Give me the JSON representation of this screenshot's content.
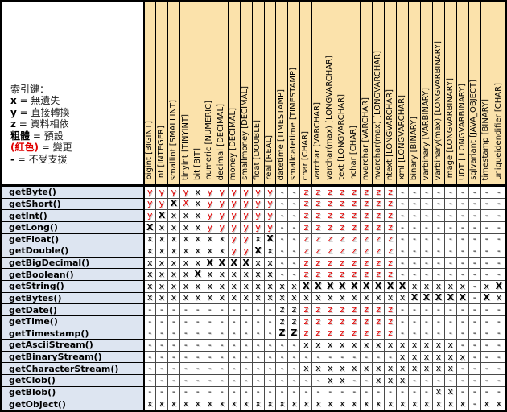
{
  "legend": {
    "title": "索引鍵：",
    "entries": [
      {
        "key": "x",
        "desc": "無遺失",
        "red": false
      },
      {
        "key": "y",
        "desc": "直接轉換",
        "red": false
      },
      {
        "key": "z",
        "desc": "資料相依",
        "red": false
      },
      {
        "key": "粗體",
        "desc": "預設",
        "red": false
      },
      {
        "key": "(紅色)",
        "desc": "變更",
        "red": true
      },
      {
        "key": "-",
        "desc": "不受支援",
        "red": false
      }
    ]
  },
  "colors": {
    "header_bg": "#FBE2AB",
    "row_label_bg": "#DDE5F1",
    "symbol_red": "#E00000",
    "border": "#000000"
  },
  "columns": [
    "bigint [BIGINT]",
    "int [INTEGER]",
    "smallint [SMALLINT]",
    "tinyint [TINYINT]",
    "bit [BIT]",
    "numeric [NUMERIC]",
    "decimal [DECIMAL]",
    "money [DECIMAL]",
    "smallmoney [DECIMAL]",
    "float [DOUBLE]",
    "real [REAL]",
    "datetime [TIMESTAMP]",
    "smalldatetime [TIMESTAMP]",
    "char [CHAR]",
    "varchar [VARCHAR]",
    "varchar(max) [LONGVARCHAR]",
    "text [LONGVARCHAR]",
    "nchar [CHAR]",
    "nvarchar [VARCHAR]",
    "nvarchar(max) [LONGVARCHAR]",
    "ntext [LONGVARCHAR]",
    "xml [LONGVARCHAR]",
    "binary [BINARY]",
    "varbinary [VARBINARY]",
    "varbinary(max) [LONGVARBINARY]",
    "image [LONGVARBINARY]",
    "UDT [ LONGVARBINARY]",
    "sqlvariant [JAVA_OBJECT]",
    "timestamp [BINARY]",
    "uniqueidendifier [CHAR]"
  ],
  "symbol_display": {
    "x": "x",
    "X": "X",
    "y": "y",
    "z": "z",
    "zk": "z",
    "Z": "Z",
    "R": "X",
    "-": "-"
  },
  "symbol_style": {
    "x": "",
    "X": "bold",
    "y": "red",
    "z": "red",
    "zk": "",
    "Z": "bold",
    "R": "red",
    "-": ""
  },
  "rows": [
    {
      "method": "getByte()",
      "cells": [
        "y",
        "y",
        "y",
        "y",
        "x",
        "y",
        "y",
        "y",
        "y",
        "y",
        "y",
        "-",
        "-",
        "z",
        "z",
        "z",
        "z",
        "z",
        "z",
        "z",
        "z",
        "-",
        "-",
        "-",
        "-",
        "-",
        "-",
        "-",
        "-",
        "-"
      ]
    },
    {
      "method": "getShort()",
      "cells": [
        "y",
        "y",
        "X",
        "R",
        "x",
        "y",
        "y",
        "y",
        "y",
        "y",
        "y",
        "-",
        "-",
        "z",
        "z",
        "z",
        "z",
        "z",
        "z",
        "z",
        "z",
        "-",
        "-",
        "-",
        "-",
        "-",
        "-",
        "-",
        "-",
        "-"
      ]
    },
    {
      "method": "getInt()",
      "cells": [
        "y",
        "X",
        "x",
        "x",
        "x",
        "y",
        "y",
        "y",
        "y",
        "y",
        "y",
        "-",
        "-",
        "z",
        "z",
        "z",
        "z",
        "z",
        "z",
        "z",
        "z",
        "-",
        "-",
        "-",
        "-",
        "-",
        "-",
        "-",
        "-",
        "-"
      ]
    },
    {
      "method": "getLong()",
      "cells": [
        "X",
        "x",
        "x",
        "x",
        "x",
        "y",
        "y",
        "y",
        "y",
        "y",
        "y",
        "-",
        "-",
        "z",
        "z",
        "z",
        "z",
        "z",
        "z",
        "z",
        "z",
        "-",
        "-",
        "-",
        "-",
        "-",
        "-",
        "-",
        "-",
        "-"
      ]
    },
    {
      "method": "getFloat()",
      "cells": [
        "x",
        "x",
        "x",
        "x",
        "x",
        "x",
        "x",
        "y",
        "y",
        "x",
        "X",
        "-",
        "-",
        "z",
        "z",
        "z",
        "z",
        "z",
        "z",
        "z",
        "z",
        "-",
        "-",
        "-",
        "-",
        "-",
        "-",
        "-",
        "-",
        "-"
      ]
    },
    {
      "method": "getDouble()",
      "cells": [
        "x",
        "x",
        "x",
        "x",
        "x",
        "x",
        "x",
        "y",
        "y",
        "X",
        "x",
        "-",
        "-",
        "z",
        "z",
        "z",
        "z",
        "z",
        "z",
        "z",
        "z",
        "-",
        "-",
        "-",
        "-",
        "-",
        "-",
        "-",
        "-",
        "-"
      ]
    },
    {
      "method": "getBigDecimal()",
      "cells": [
        "x",
        "x",
        "x",
        "x",
        "x",
        "X",
        "X",
        "X",
        "X",
        "x",
        "x",
        "-",
        "-",
        "z",
        "z",
        "z",
        "z",
        "z",
        "z",
        "z",
        "z",
        "-",
        "-",
        "-",
        "-",
        "-",
        "-",
        "-",
        "-",
        "-"
      ]
    },
    {
      "method": "getBoolean()",
      "cells": [
        "x",
        "x",
        "x",
        "x",
        "X",
        "x",
        "x",
        "x",
        "x",
        "x",
        "x",
        "-",
        "-",
        "z",
        "z",
        "z",
        "z",
        "z",
        "z",
        "z",
        "z",
        "-",
        "-",
        "-",
        "-",
        "-",
        "-",
        "-",
        "-",
        "-"
      ]
    },
    {
      "method": "getString()",
      "cells": [
        "x",
        "x",
        "x",
        "x",
        "x",
        "x",
        "x",
        "x",
        "x",
        "x",
        "x",
        "x",
        "x",
        "X",
        "X",
        "X",
        "X",
        "X",
        "X",
        "X",
        "X",
        "X",
        "x",
        "x",
        "x",
        "x",
        "x",
        "-",
        "x",
        "X"
      ]
    },
    {
      "method": "getBytes()",
      "cells": [
        "x",
        "x",
        "x",
        "x",
        "x",
        "x",
        "x",
        "x",
        "x",
        "x",
        "x",
        "x",
        "x",
        "x",
        "x",
        "x",
        "x",
        "x",
        "x",
        "x",
        "x",
        "x",
        "X",
        "X",
        "X",
        "X",
        "X",
        "-",
        "X",
        "x"
      ]
    },
    {
      "method": "getDate()",
      "cells": [
        "-",
        "-",
        "-",
        "-",
        "-",
        "-",
        "-",
        "-",
        "-",
        "-",
        "-",
        "zk",
        "zk",
        "z",
        "z",
        "z",
        "z",
        "z",
        "z",
        "z",
        "z",
        "-",
        "-",
        "-",
        "-",
        "-",
        "-",
        "-",
        "-",
        "-"
      ]
    },
    {
      "method": "getTime()",
      "cells": [
        "-",
        "-",
        "-",
        "-",
        "-",
        "-",
        "-",
        "-",
        "-",
        "-",
        "-",
        "zk",
        "zk",
        "z",
        "z",
        "z",
        "z",
        "z",
        "z",
        "z",
        "z",
        "-",
        "-",
        "-",
        "-",
        "-",
        "-",
        "-",
        "-",
        "-"
      ]
    },
    {
      "method": "getTimestamp()",
      "cells": [
        "-",
        "-",
        "-",
        "-",
        "-",
        "-",
        "-",
        "-",
        "-",
        "-",
        "-",
        "Z",
        "Z",
        "z",
        "z",
        "z",
        "z",
        "z",
        "z",
        "z",
        "z",
        "-",
        "-",
        "-",
        "-",
        "-",
        "-",
        "-",
        "-",
        "-"
      ]
    },
    {
      "method": "getAsciiStream()",
      "cells": [
        "-",
        "-",
        "-",
        "-",
        "-",
        "-",
        "-",
        "-",
        "-",
        "-",
        "-",
        "-",
        "-",
        "x",
        "x",
        "x",
        "x",
        "x",
        "x",
        "x",
        "x",
        "x",
        "x",
        "x",
        "x",
        "x",
        "-",
        "-",
        "-",
        "-"
      ]
    },
    {
      "method": "getBinaryStream()",
      "cells": [
        "-",
        "-",
        "-",
        "-",
        "-",
        "-",
        "-",
        "-",
        "-",
        "-",
        "-",
        "-",
        "-",
        "-",
        "-",
        "-",
        "-",
        "-",
        "-",
        "-",
        "-",
        "x",
        "x",
        "x",
        "x",
        "x",
        "x",
        "-",
        "-",
        "-"
      ]
    },
    {
      "method": "getCharacterStream()",
      "cells": [
        "-",
        "-",
        "-",
        "-",
        "-",
        "-",
        "-",
        "-",
        "-",
        "-",
        "-",
        "-",
        "-",
        "x",
        "x",
        "x",
        "x",
        "x",
        "x",
        "x",
        "x",
        "x",
        "x",
        "x",
        "x",
        "x",
        "-",
        "-",
        "-",
        "-"
      ]
    },
    {
      "method": "getClob()",
      "cells": [
        "-",
        "-",
        "-",
        "-",
        "-",
        "-",
        "-",
        "-",
        "-",
        "-",
        "-",
        "-",
        "-",
        "-",
        "-",
        "x",
        "x",
        "-",
        "-",
        "x",
        "x",
        "x",
        "-",
        "-",
        "-",
        "-",
        "-",
        "-",
        "-",
        "-"
      ]
    },
    {
      "method": "getBlob()",
      "cells": [
        "-",
        "-",
        "-",
        "-",
        "-",
        "-",
        "-",
        "-",
        "-",
        "-",
        "-",
        "-",
        "-",
        "-",
        "-",
        "-",
        "-",
        "-",
        "-",
        "-",
        "-",
        "-",
        "-",
        "-",
        "x",
        "x",
        "-",
        "-",
        "-",
        "-"
      ]
    },
    {
      "method": "getObject()",
      "cells": [
        "x",
        "x",
        "x",
        "x",
        "x",
        "x",
        "x",
        "x",
        "x",
        "x",
        "x",
        "x",
        "x",
        "x",
        "x",
        "x",
        "x",
        "x",
        "x",
        "x",
        "x",
        "x",
        "x",
        "x",
        "x",
        "x",
        "x",
        "-",
        "x",
        "x"
      ]
    }
  ]
}
